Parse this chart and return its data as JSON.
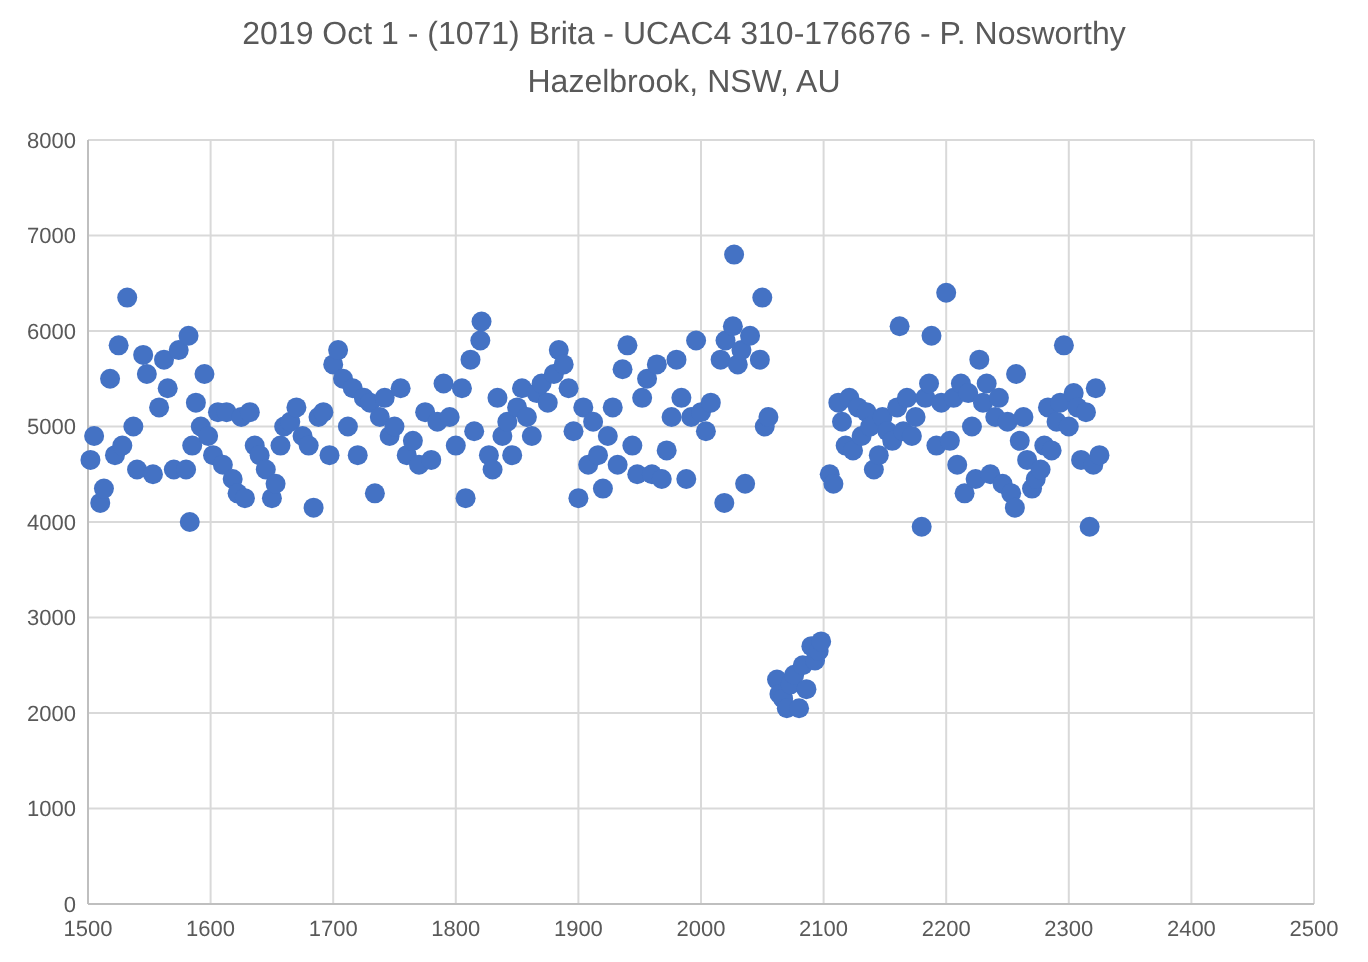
{
  "chart_data": {
    "type": "scatter",
    "title": "2019 Oct 1 - (1071) Brita - UCAC4 310-176676 - P. Nosworthy",
    "subtitle": "Hazelbrook, NSW, AU",
    "xlim": [
      1500,
      2500
    ],
    "xticks": [
      1500,
      1600,
      1700,
      1800,
      1900,
      2000,
      2100,
      2200,
      2300,
      2400,
      2500
    ],
    "ylim": [
      0,
      8000
    ],
    "yticks": [
      0,
      1000,
      2000,
      3000,
      4000,
      5000,
      6000,
      7000,
      8000
    ],
    "grid": true,
    "marker": "circle",
    "series": [
      {
        "color": "#4472c4",
        "x": [
          1502,
          1505,
          1510,
          1513,
          1518,
          1522,
          1525,
          1528,
          1532,
          1537,
          1540,
          1545,
          1548,
          1553,
          1558,
          1562,
          1565,
          1570,
          1574,
          1580,
          1583,
          1582,
          1585,
          1588,
          1592,
          1595,
          1598,
          1602,
          1606,
          1610,
          1613,
          1618,
          1622,
          1625,
          1628,
          1632,
          1636,
          1640,
          1645,
          1650,
          1653,
          1657,
          1660,
          1665,
          1670,
          1675,
          1680,
          1684,
          1688,
          1692,
          1697,
          1700,
          1704,
          1708,
          1712,
          1716,
          1720,
          1725,
          1730,
          1734,
          1738,
          1742,
          1746,
          1750,
          1755,
          1760,
          1765,
          1770,
          1775,
          1780,
          1785,
          1790,
          1795,
          1800,
          1805,
          1808,
          1812,
          1815,
          1820,
          1821,
          1827,
          1830,
          1834,
          1838,
          1842,
          1846,
          1850,
          1854,
          1858,
          1862,
          1866,
          1870,
          1875,
          1880,
          1884,
          1888,
          1892,
          1896,
          1900,
          1904,
          1908,
          1912,
          1916,
          1920,
          1924,
          1928,
          1932,
          1936,
          1940,
          1944,
          1948,
          1952,
          1956,
          1960,
          1964,
          1968,
          1972,
          1976,
          1980,
          1984,
          1988,
          1992,
          1996,
          2000,
          2004,
          2008,
          2019,
          2016,
          2020,
          2027,
          2026,
          2030,
          2033,
          2036,
          2040,
          2050,
          2048,
          2052,
          2055,
          2062,
          2064,
          2067,
          2070,
          2073,
          2076,
          2080,
          2083,
          2086,
          2090,
          2093,
          2096,
          2098,
          2105,
          2108,
          2112,
          2115,
          2118,
          2121,
          2124,
          2128,
          2131,
          2135,
          2138,
          2141,
          2145,
          2148,
          2152,
          2156,
          2160,
          2162,
          2165,
          2168,
          2172,
          2175,
          2180,
          2183,
          2186,
          2188,
          2192,
          2196,
          2200,
          2203,
          2206,
          2209,
          2212,
          2215,
          2218,
          2221,
          2224,
          2227,
          2230,
          2233,
          2236,
          2240,
          2243,
          2246,
          2250,
          2253,
          2256,
          2257,
          2260,
          2263,
          2266,
          2270,
          2273,
          2277,
          2280,
          2283,
          2286,
          2290,
          2293,
          2296,
          2300,
          2304,
          2307,
          2310,
          2314,
          2317,
          2320,
          2322,
          2325
        ],
        "values": [
          4650,
          4900,
          4200,
          4350,
          5500,
          4700,
          5850,
          4800,
          6350,
          5000,
          4550,
          5750,
          5550,
          4500,
          5200,
          5700,
          5400,
          4550,
          5800,
          4550,
          4000,
          5950,
          4800,
          5250,
          5000,
          5550,
          4900,
          4700,
          5150,
          4600,
          5150,
          4450,
          4300,
          5100,
          4250,
          5150,
          4800,
          4700,
          4550,
          4250,
          4400,
          4800,
          5000,
          5050,
          5200,
          4900,
          4800,
          4150,
          5100,
          5150,
          4700,
          5650,
          5800,
          5500,
          5000,
          5400,
          4700,
          5300,
          5250,
          4300,
          5100,
          5300,
          4900,
          5000,
          5400,
          4700,
          4850,
          4600,
          5150,
          4650,
          5050,
          5450,
          5100,
          4800,
          5400,
          4250,
          5700,
          4950,
          5900,
          6100,
          4700,
          4550,
          5300,
          4900,
          5050,
          4700,
          5200,
          5400,
          5100,
          4900,
          5350,
          5450,
          5250,
          5550,
          5800,
          5650,
          5400,
          4950,
          4250,
          5200,
          4600,
          5050,
          4700,
          4350,
          4900,
          5200,
          4600,
          5600,
          5850,
          4800,
          4500,
          5300,
          5500,
          4500,
          5650,
          4450,
          4750,
          5100,
          5700,
          5300,
          4450,
          5100,
          5900,
          5150,
          4950,
          5250,
          4200,
          5700,
          5900,
          6800,
          6050,
          5650,
          5800,
          4400,
          5950,
          6350,
          5700,
          5000,
          5100,
          2350,
          2200,
          2150,
          2050,
          2300,
          2400,
          2050,
          2500,
          2250,
          2700,
          2550,
          2650,
          2750,
          4500,
          4400,
          5250,
          5050,
          4800,
          5300,
          4750,
          5200,
          4900,
          5150,
          5000,
          4550,
          4700,
          5100,
          4950,
          4850,
          5200,
          6050,
          4950,
          5300,
          4900,
          5100,
          3950,
          5300,
          5450,
          5950,
          4800,
          5250,
          6400,
          4850,
          5300,
          4600,
          5450,
          4300,
          5350,
          5000,
          4450,
          5700,
          5250,
          5450,
          4500,
          5100,
          5300,
          4400,
          5050,
          4300,
          4150,
          5550,
          4850,
          5100,
          4650,
          4350,
          4450,
          4550,
          4800,
          5200,
          4750,
          5050,
          5250,
          5850,
          5000,
          5350,
          5200,
          4650,
          5150,
          3950,
          4600,
          5400,
          4700
        ]
      }
    ]
  }
}
